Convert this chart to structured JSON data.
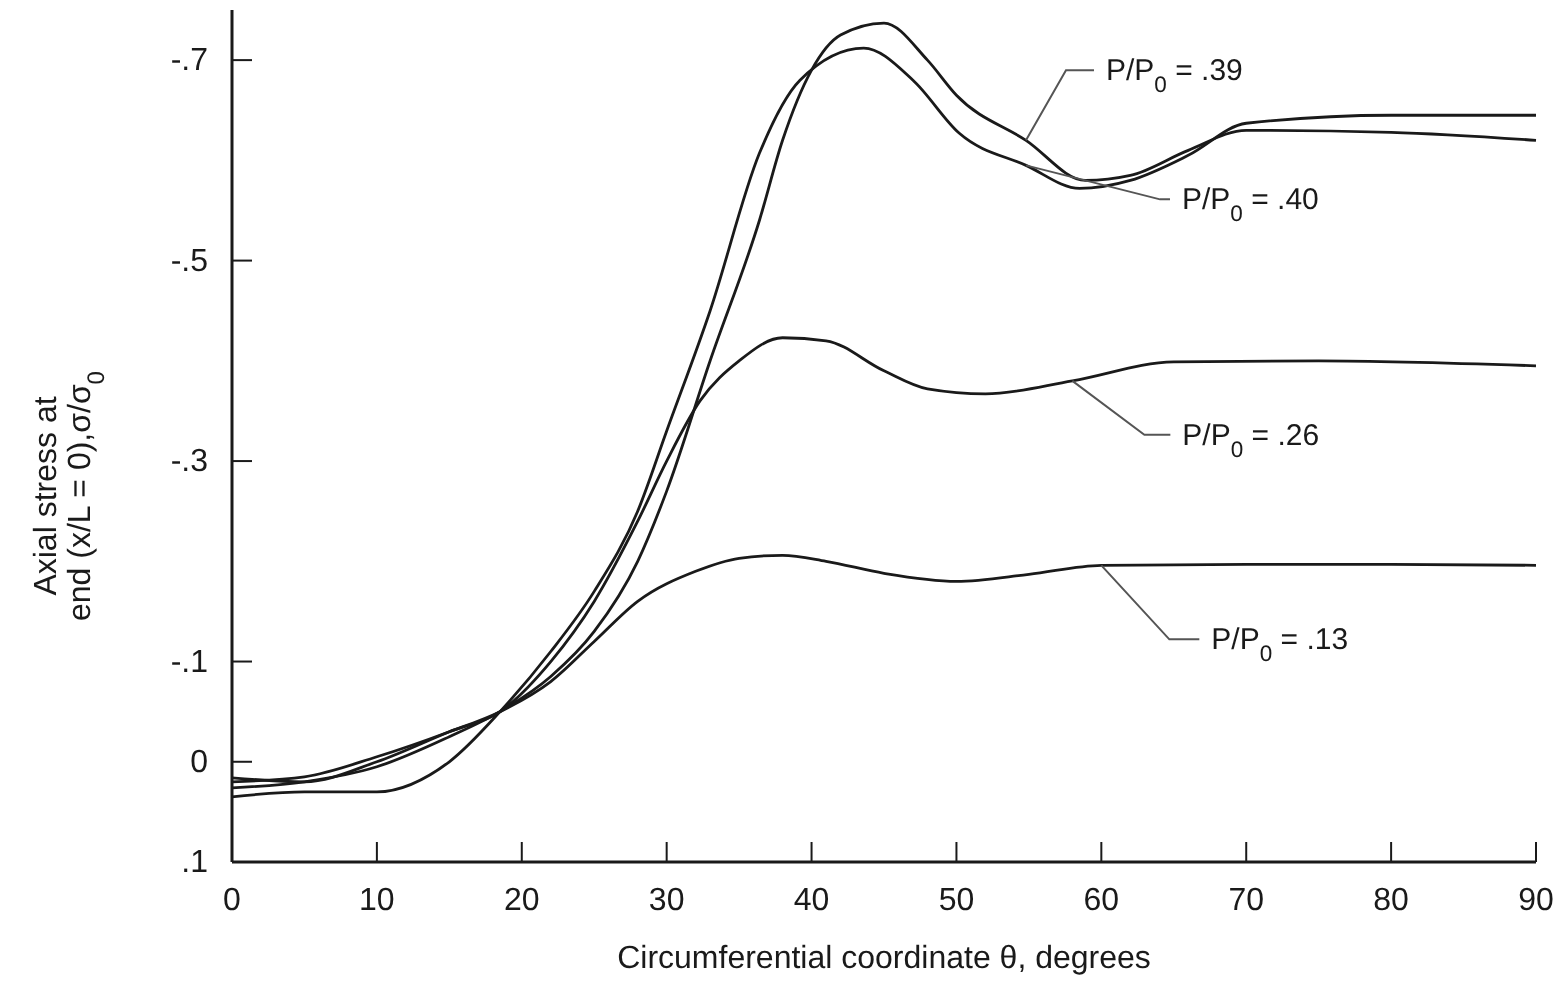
{
  "chart_data": {
    "type": "line",
    "xlabel": "Circumferential coordinate θ, degrees",
    "ylabel": "Axial stress at\nend (x/L = 0),σ/σ$_{0}$",
    "xlim": [
      0,
      90
    ],
    "xticks": [
      0,
      10,
      20,
      30,
      40,
      50,
      60,
      70,
      80,
      90
    ],
    "ylim": [
      0.1,
      -0.75
    ],
    "yticks": [
      {
        "value": -0.7,
        "label": "-.7"
      },
      {
        "value": -0.5,
        "label": "-.5"
      },
      {
        "value": -0.3,
        "label": "-.3"
      },
      {
        "value": -0.1,
        "label": "-.1"
      },
      {
        "value": 0,
        "label": "0"
      },
      {
        "value": 0.1,
        "label": ".1"
      }
    ],
    "grid": false,
    "marker": "none",
    "line_style": "solid",
    "series": [
      {
        "name": "P/P$_{0}$ = .39",
        "color": "#1a1a1a",
        "x": [
          0,
          5,
          10,
          15,
          18.5,
          22,
          25,
          28,
          30,
          33,
          36.4,
          38,
          40,
          42,
          45,
          48,
          50,
          54.8,
          58.9,
          62,
          66,
          70,
          80,
          90
        ],
        "values": [
          0.026,
          0.02,
          0.005,
          -0.025,
          -0.05,
          -0.085,
          -0.13,
          -0.2,
          -0.27,
          -0.4,
          -0.54,
          -0.62,
          -0.69,
          -0.725,
          -0.737,
          -0.7,
          -0.665,
          -0.62,
          -0.58,
          -0.585,
          -0.61,
          -0.63,
          -0.628,
          -0.62
        ]
      },
      {
        "name": "P/P$_{0}$ = .40",
        "color": "#1a1a1a",
        "x": [
          0,
          5,
          10,
          15,
          18.5,
          22,
          25,
          28,
          30,
          33,
          36.4,
          39.2,
          43.6,
          47,
          50.2,
          54.8,
          58.5,
          62,
          66,
          70,
          80,
          90
        ],
        "values": [
          0.035,
          0.03,
          0.03,
          0,
          -0.05,
          -0.11,
          -0.17,
          -0.25,
          -0.33,
          -0.45,
          -0.607,
          -0.68,
          -0.712,
          -0.68,
          -0.627,
          -0.595,
          -0.572,
          -0.58,
          -0.605,
          -0.637,
          -0.645,
          -0.645
        ]
      },
      {
        "name": "P/P$_{0}$ = .26",
        "color": "#1a1a1a",
        "x": [
          0,
          5,
          10,
          15,
          18.5,
          22,
          25,
          28,
          30,
          32.3,
          35,
          38,
          41,
          45,
          48,
          52,
          58,
          65,
          75,
          90
        ],
        "values": [
          0.016,
          0.02,
          0,
          -0.03,
          -0.05,
          -0.1,
          -0.16,
          -0.24,
          -0.3,
          -0.36,
          -0.4,
          -0.423,
          -0.42,
          -0.39,
          -0.372,
          -0.367,
          -0.38,
          -0.399,
          -0.4,
          -0.395
        ]
      },
      {
        "name": "P/P$_{0}$ = .13",
        "color": "#1a1a1a",
        "x": [
          0,
          5,
          10,
          15,
          18.5,
          22,
          25,
          28,
          32,
          35,
          38,
          41,
          45,
          50,
          55,
          60,
          70,
          80,
          90
        ],
        "values": [
          0.02,
          0.015,
          -0.005,
          -0.03,
          -0.05,
          -0.08,
          -0.12,
          -0.16,
          -0.19,
          -0.203,
          -0.206,
          -0.2,
          -0.188,
          -0.18,
          -0.187,
          -0.196,
          -0.197,
          -0.197,
          -0.196
        ]
      }
    ]
  }
}
